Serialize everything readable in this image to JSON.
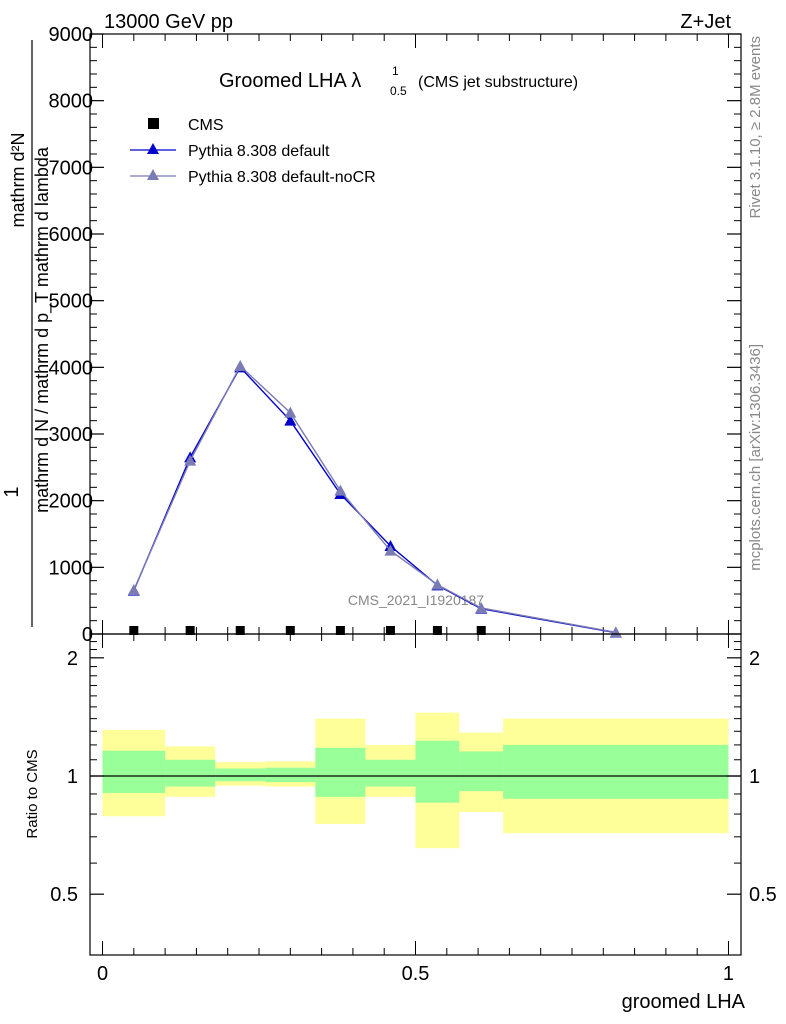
{
  "header": {
    "left": "13000 GeV pp",
    "right": "Z+Jet",
    "side_top": "Rivet 3.1.10, ≥ 2.8M events",
    "side_bottom": "mcplots.cern.ch [arXiv:1306.3436]",
    "watermark": "CMS_2021_I1920187"
  },
  "main_title": {
    "prefix": "Groomed LHA",
    "lambda": "λ",
    "sup": "1",
    "sub": "0.5",
    "suffix": "(CMS jet substructure)"
  },
  "legend": {
    "placement": "top-left",
    "entries": [
      {
        "label": "CMS",
        "marker": "square",
        "color": "#000000"
      },
      {
        "label": "Pythia 8.308 default",
        "marker": "triangle",
        "color": "#0000cc"
      },
      {
        "label": "Pythia 8.308 default-noCR",
        "marker": "triangle",
        "color": "#7b7bb5"
      }
    ]
  },
  "upper_ylabel": {
    "one": "1",
    "numerator": "mathrm d²N",
    "denominator": "mathrm d N / mathrm d p_T mathrm d lambda"
  },
  "lower_ylabel": "Ratio to CMS",
  "xlabel": "groomed LHA",
  "chart_data": [
    {
      "type": "line",
      "panel": "main",
      "xlim": [
        -0.02,
        1.02
      ],
      "ylim": [
        0,
        9000
      ],
      "yticks": [
        0,
        1000,
        2000,
        3000,
        4000,
        5000,
        6000,
        7000,
        8000,
        9000
      ],
      "ytick_labels": [
        "0",
        "1000",
        "2000",
        "3000",
        "4000",
        "5000",
        "6000",
        "7000",
        "8000",
        "9000"
      ],
      "data_series": [
        {
          "name": "CMS",
          "color": "#000000",
          "marker": "square",
          "x": [
            0.05,
            0.14,
            0.22,
            0.3,
            0.38,
            0.46,
            0.535,
            0.605
          ],
          "y": [
            0,
            0,
            0,
            0,
            0,
            0,
            0,
            0
          ]
        },
        {
          "name": "Pythia 8.308 default",
          "color": "#0000cc",
          "marker": "triangle",
          "x": [
            0.05,
            0.14,
            0.22,
            0.3,
            0.38,
            0.46,
            0.535,
            0.605,
            0.82
          ],
          "y": [
            650,
            2650,
            4000,
            3200,
            2100,
            1320,
            730,
            380,
            20
          ]
        },
        {
          "name": "Pythia 8.308 default-noCR",
          "color": "#7b7bb5",
          "marker": "triangle",
          "x": [
            0.05,
            0.14,
            0.22,
            0.3,
            0.38,
            0.46,
            0.535,
            0.605,
            0.82
          ],
          "y": [
            660,
            2600,
            4020,
            3320,
            2150,
            1250,
            740,
            390,
            25
          ]
        }
      ]
    },
    {
      "type": "area",
      "panel": "ratio",
      "xlim": [
        -0.02,
        1.02
      ],
      "ylim": [
        0.35,
        2.3
      ],
      "log_y": true,
      "yticks": [
        0.5,
        1,
        2
      ],
      "ytick_labels": [
        "0.5",
        "1",
        "2"
      ],
      "xticks": [
        0,
        0.5,
        1
      ],
      "xtick_labels": [
        "0",
        "0.5",
        "1"
      ],
      "bin_edges": [
        0,
        0.1,
        0.18,
        0.26,
        0.34,
        0.42,
        0.5,
        0.57,
        0.64,
        1.0
      ],
      "band_outer": {
        "color": "#ffff99",
        "low": [
          0.79,
          0.885,
          0.945,
          0.94,
          0.755,
          0.885,
          0.655,
          0.81,
          0.715
        ],
        "high": [
          1.31,
          1.19,
          1.085,
          1.09,
          1.4,
          1.2,
          1.45,
          1.29,
          1.4
        ]
      },
      "band_inner": {
        "color": "#99ff99",
        "low": [
          0.905,
          0.94,
          0.97,
          0.965,
          0.885,
          0.94,
          0.855,
          0.915,
          0.875
        ],
        "high": [
          1.16,
          1.1,
          1.045,
          1.05,
          1.18,
          1.1,
          1.23,
          1.155,
          1.2
        ]
      },
      "reference_line": 1
    }
  ]
}
